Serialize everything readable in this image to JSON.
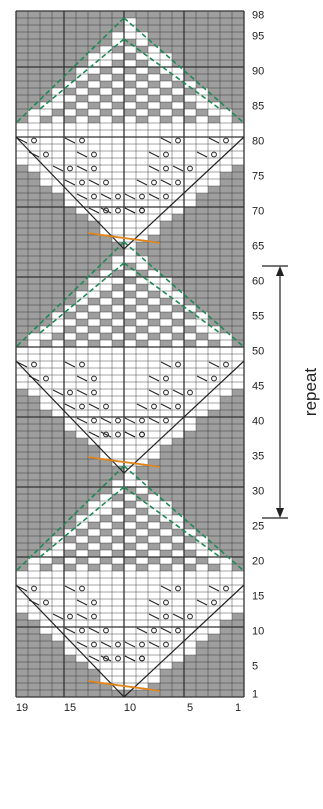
{
  "chart": {
    "rows": 98,
    "cols": 19,
    "row_labels": [
      "1",
      "5",
      "10",
      "15",
      "20",
      "25",
      "30",
      "35",
      "40",
      "45",
      "50",
      "55",
      "60",
      "65",
      "70",
      "75",
      "80",
      "85",
      "90",
      "95",
      "98"
    ],
    "col_labels": [
      "19",
      "15",
      "10",
      "5",
      "1"
    ],
    "repeat": {
      "label": "repeat",
      "from_row": 35,
      "to_row": 66
    }
  },
  "legend": {
    "colors": {
      "background": "#9e9e9e",
      "grid": "#333333",
      "knit": "#ffffff",
      "purl": "#9e9e9e",
      "dash_green": "#1e8a55",
      "cable_orange": "#e0861c"
    }
  }
}
